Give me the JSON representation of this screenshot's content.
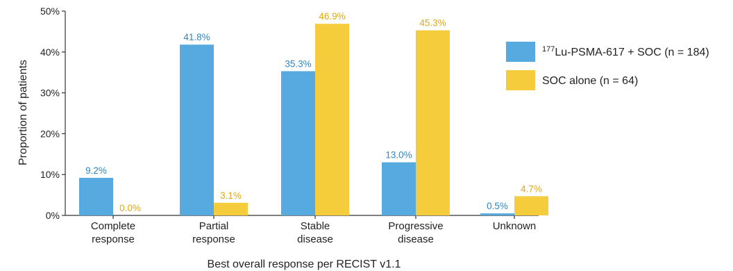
{
  "chart_data": {
    "type": "bar",
    "title": "",
    "xlabel": "Best overall response per RECIST v1.1",
    "ylabel": "Proportion of patients",
    "ylim": [
      0,
      50
    ],
    "yticks": [
      {
        "value": 0,
        "label": "0%"
      },
      {
        "value": 10,
        "label": "10%"
      },
      {
        "value": 20,
        "label": "20%"
      },
      {
        "value": 30,
        "label": "30%"
      },
      {
        "value": 40,
        "label": "40%"
      },
      {
        "value": 50,
        "label": "50%"
      }
    ],
    "categories": [
      [
        "Complete",
        "response"
      ],
      [
        "Partial",
        "response"
      ],
      [
        "Stable",
        "disease"
      ],
      [
        "Progressive",
        "disease"
      ],
      [
        "Unknown"
      ]
    ],
    "series": [
      {
        "name": "Lu-PSMA-617 + SOC (n = 184)",
        "name_superscript": "177",
        "color": "#57aadf",
        "label_color": "#2f86bf",
        "values": [
          9.2,
          41.8,
          35.3,
          13.0,
          0.5
        ],
        "labels": [
          "9.2%",
          "41.8%",
          "35.3%",
          "13.0%",
          "0.5%"
        ]
      },
      {
        "name": "SOC alone (n = 64)",
        "name_superscript": "",
        "color": "#f5cc3b",
        "label_color": "#e0a812",
        "values": [
          0.0,
          3.1,
          46.9,
          45.3,
          4.7
        ],
        "labels": [
          "0.0%",
          "3.1%",
          "46.9%",
          "45.3%",
          "4.7%"
        ]
      }
    ],
    "grid": false,
    "legend_position": "right"
  }
}
